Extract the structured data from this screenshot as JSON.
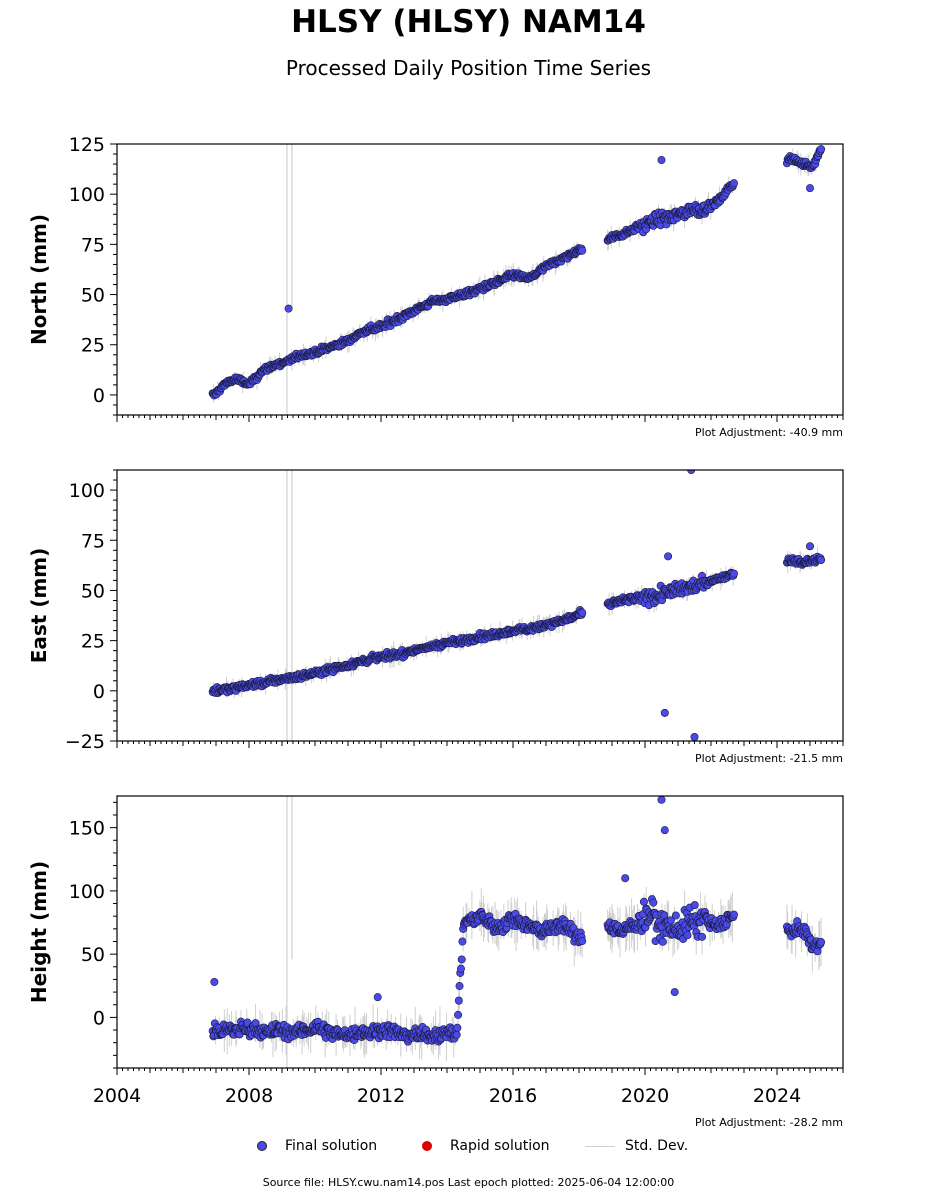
{
  "header": {
    "title": "HLSY (HLSY) NAM14",
    "subtitle": "Processed Daily Position Time Series"
  },
  "legend": {
    "final": {
      "label": "Final solution",
      "color": "#4a4ae8"
    },
    "rapid": {
      "label": "Rapid solution",
      "color": "#dd0000"
    },
    "stddev": {
      "label": "Std. Dev.",
      "color": "#cfcfcf"
    }
  },
  "footer": {
    "source": "Source file: HLSY.cwu.nam14.pos  Last epoch plotted: 2025-06-04 12:00:00"
  },
  "chart_data": [
    {
      "type": "scatter",
      "ylabel": "North (mm)",
      "adjustment": "Plot Adjustment: -40.9 mm",
      "xlim": [
        2004,
        2026
      ],
      "ylim": [
        -10,
        125
      ],
      "yticks": [
        0,
        25,
        50,
        75,
        100,
        125
      ],
      "yticklabels": [
        "0",
        "25",
        "50",
        "75",
        "100",
        "125"
      ],
      "xticks": [
        2004,
        2008,
        2012,
        2016,
        2020,
        2024
      ],
      "xticklabels": [],
      "series": [
        {
          "values_approx": [
            [
              2006.95,
              0
            ],
            [
              2007.3,
              6
            ],
            [
              2007.6,
              8
            ],
            [
              2008.0,
              5
            ],
            [
              2008.4,
              12
            ],
            [
              2008.8,
              15
            ],
            [
              2009.2,
              17
            ],
            [
              2009.6,
              20
            ],
            [
              2010.0,
              21
            ],
            [
              2010.5,
              24
            ],
            [
              2011.0,
              27
            ],
            [
              2011.5,
              32
            ],
            [
              2012.0,
              34
            ],
            [
              2012.5,
              38
            ],
            [
              2013.0,
              42
            ],
            [
              2013.5,
              46
            ],
            [
              2014.0,
              48
            ],
            [
              2014.5,
              50
            ],
            [
              2015.0,
              53
            ],
            [
              2015.5,
              56
            ],
            [
              2016.0,
              60
            ],
            [
              2016.5,
              58
            ],
            [
              2017.0,
              64
            ],
            [
              2017.5,
              68
            ],
            [
              2018.0,
              72
            ],
            [
              2018.9,
              78
            ],
            [
              2019.3,
              80
            ],
            [
              2019.8,
              84
            ],
            [
              2020.2,
              86
            ],
            [
              2020.6,
              88
            ],
            [
              2021.0,
              90
            ],
            [
              2021.4,
              92
            ],
            [
              2021.8,
              93
            ],
            [
              2022.2,
              96
            ],
            [
              2022.6,
              104
            ],
            [
              2024.4,
              118
            ],
            [
              2024.8,
              115
            ],
            [
              2025.1,
              114
            ],
            [
              2025.3,
              122
            ]
          ],
          "outliers": [
            [
              2009.2,
              43
            ],
            [
              2020.5,
              117
            ],
            [
              2025.0,
              103
            ]
          ]
        }
      ]
    },
    {
      "type": "scatter",
      "ylabel": "East (mm)",
      "adjustment": "Plot Adjustment: -21.5 mm",
      "xlim": [
        2004,
        2026
      ],
      "ylim": [
        -25,
        110
      ],
      "yticks": [
        -25,
        0,
        25,
        50,
        75,
        100
      ],
      "yticklabels": [
        "−25",
        "0",
        "25",
        "50",
        "75",
        "100"
      ],
      "xticks": [
        2004,
        2008,
        2012,
        2016,
        2020,
        2024
      ],
      "xticklabels": [],
      "series": [
        {
          "values_approx": [
            [
              2006.95,
              0
            ],
            [
              2007.5,
              1
            ],
            [
              2008.0,
              3
            ],
            [
              2008.5,
              4
            ],
            [
              2009.0,
              6
            ],
            [
              2009.5,
              7
            ],
            [
              2010.0,
              9
            ],
            [
              2010.5,
              11
            ],
            [
              2011.0,
              13
            ],
            [
              2011.5,
              15
            ],
            [
              2012.0,
              17
            ],
            [
              2012.5,
              18
            ],
            [
              2013.0,
              20
            ],
            [
              2013.5,
              22
            ],
            [
              2014.0,
              24
            ],
            [
              2014.5,
              25
            ],
            [
              2015.0,
              27
            ],
            [
              2015.5,
              28
            ],
            [
              2016.0,
              30
            ],
            [
              2016.5,
              31
            ],
            [
              2017.0,
              33
            ],
            [
              2017.5,
              35
            ],
            [
              2018.0,
              38
            ],
            [
              2018.9,
              43
            ],
            [
              2019.3,
              45
            ],
            [
              2019.8,
              46
            ],
            [
              2020.2,
              47
            ],
            [
              2020.6,
              48
            ],
            [
              2021.0,
              50
            ],
            [
              2021.4,
              52
            ],
            [
              2021.8,
              54
            ],
            [
              2022.2,
              56
            ],
            [
              2022.6,
              58
            ],
            [
              2024.4,
              65
            ],
            [
              2024.8,
              64
            ],
            [
              2025.3,
              66
            ]
          ],
          "outliers": [
            [
              2020.6,
              -11
            ],
            [
              2020.7,
              67
            ],
            [
              2021.4,
              110
            ],
            [
              2021.5,
              -23
            ],
            [
              2025.0,
              72
            ]
          ]
        }
      ]
    },
    {
      "type": "scatter",
      "ylabel": "Height (mm)",
      "adjustment": "Plot Adjustment: -28.2 mm",
      "xlim": [
        2004,
        2026
      ],
      "ylim": [
        -40,
        175
      ],
      "yticks": [
        0,
        50,
        100,
        150
      ],
      "yticklabels": [
        "0",
        "50",
        "100",
        "150"
      ],
      "xticks": [
        2004,
        2008,
        2012,
        2016,
        2020,
        2024
      ],
      "xticklabels": [
        "2004",
        "2008",
        "2012",
        "2016",
        "2020",
        "2024"
      ],
      "series": [
        {
          "values_approx": [
            [
              2006.95,
              -10
            ],
            [
              2007.5,
              -10
            ],
            [
              2008.0,
              -8
            ],
            [
              2008.5,
              -12
            ],
            [
              2009.0,
              -10
            ],
            [
              2009.5,
              -12
            ],
            [
              2010.0,
              -8
            ],
            [
              2010.5,
              -12
            ],
            [
              2011.0,
              -14
            ],
            [
              2011.5,
              -12
            ],
            [
              2012.0,
              -10
            ],
            [
              2012.5,
              -12
            ],
            [
              2013.0,
              -14
            ],
            [
              2013.5,
              -14
            ],
            [
              2014.0,
              -12
            ],
            [
              2014.3,
              -14
            ],
            [
              2014.5,
              75
            ],
            [
              2015.0,
              80
            ],
            [
              2015.5,
              70
            ],
            [
              2016.0,
              78
            ],
            [
              2016.5,
              72
            ],
            [
              2017.0,
              68
            ],
            [
              2017.5,
              74
            ],
            [
              2018.0,
              62
            ],
            [
              2018.9,
              72
            ],
            [
              2019.3,
              68
            ],
            [
              2019.8,
              75
            ],
            [
              2020.2,
              80
            ],
            [
              2020.6,
              72
            ],
            [
              2021.0,
              70
            ],
            [
              2021.4,
              74
            ],
            [
              2021.8,
              76
            ],
            [
              2022.2,
              72
            ],
            [
              2022.6,
              80
            ],
            [
              2024.4,
              68
            ],
            [
              2024.8,
              70
            ],
            [
              2025.1,
              55
            ],
            [
              2025.3,
              58
            ]
          ],
          "outliers": [
            [
              2006.95,
              28
            ],
            [
              2011.9,
              16
            ],
            [
              2020.5,
              172
            ],
            [
              2020.6,
              148
            ],
            [
              2020.9,
              20
            ],
            [
              2019.4,
              110
            ]
          ]
        }
      ]
    }
  ]
}
